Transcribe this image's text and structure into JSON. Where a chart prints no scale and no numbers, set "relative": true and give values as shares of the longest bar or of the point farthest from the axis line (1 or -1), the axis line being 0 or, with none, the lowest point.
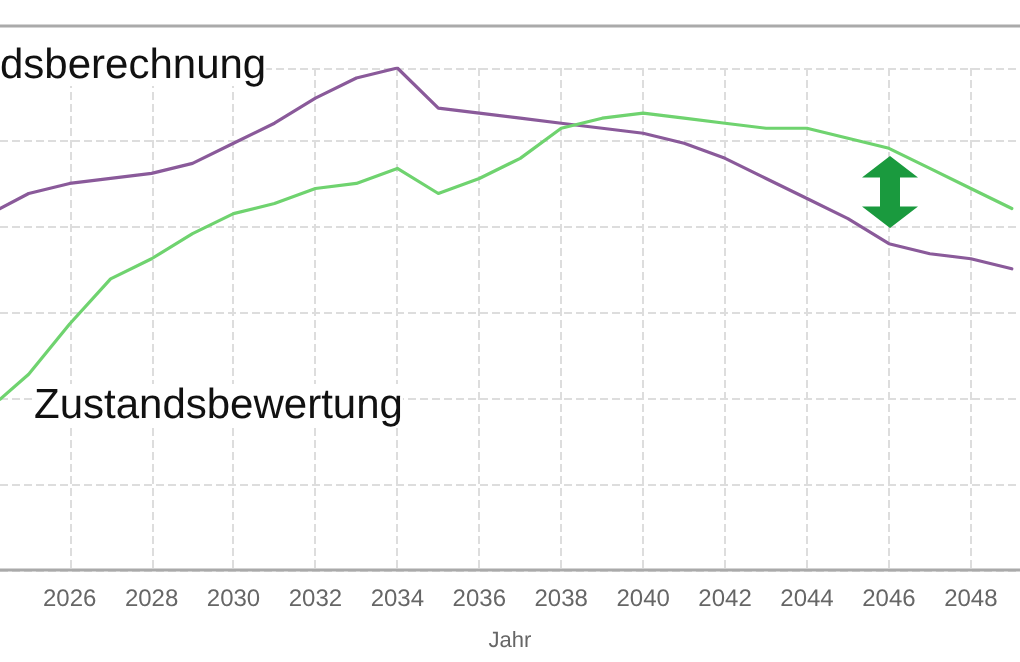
{
  "chart_data": {
    "type": "line",
    "xlabel": "Jahr",
    "relative": true,
    "grid": true,
    "marker": "none",
    "line_style": "solid",
    "xlim": [
      2024.3,
      2049.2
    ],
    "xticks": [
      2026,
      2028,
      2030,
      2032,
      2034,
      2036,
      2038,
      2040,
      2042,
      2044,
      2046,
      2048
    ],
    "x": [
      2024.3,
      2025,
      2026,
      2027,
      2028,
      2029,
      2030,
      2031,
      2032,
      2033,
      2034,
      2035,
      2036,
      2037,
      2038,
      2039,
      2040,
      2041,
      2042,
      2043,
      2044,
      2045,
      2046,
      2047,
      2048,
      2049
    ],
    "series": [
      {
        "name": "dsberechnung",
        "color": "#8a5a9a",
        "values": [
          0.72,
          0.75,
          0.77,
          0.78,
          0.79,
          0.81,
          0.85,
          0.89,
          0.94,
          0.98,
          1,
          0.92,
          0.91,
          0.9,
          0.89,
          0.88,
          0.87,
          0.85,
          0.82,
          0.78,
          0.74,
          0.7,
          0.65,
          0.63,
          0.62,
          0.6
        ]
      },
      {
        "name": "Zustandsbewertung",
        "color": "#6fd36f",
        "values": [
          0.34,
          0.39,
          0.49,
          0.58,
          0.62,
          0.67,
          0.71,
          0.73,
          0.76,
          0.77,
          0.8,
          0.75,
          0.78,
          0.82,
          0.88,
          0.9,
          0.91,
          0.9,
          0.89,
          0.88,
          0.88,
          0.86,
          0.84,
          0.8,
          0.76,
          0.72
        ]
      }
    ]
  }
}
